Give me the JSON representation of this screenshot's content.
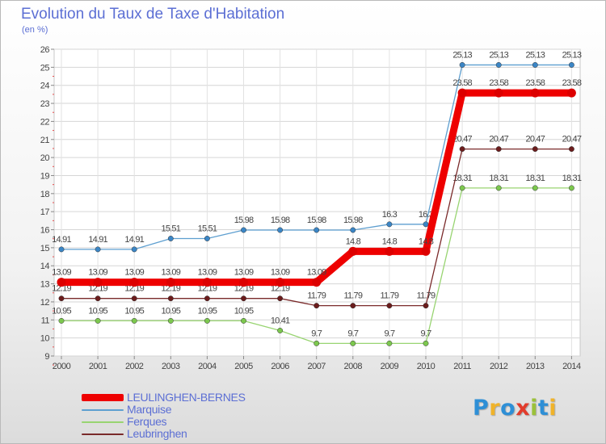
{
  "title": "Evolution du Taux de Taxe d'Habitation",
  "unit_label": "(en %)",
  "logo_text": "Proxiti",
  "logo_colors": [
    "#2e8fd6",
    "#f0b32a",
    "#2e8fd6",
    "#e23c2c",
    "#9bc13a",
    "#2e8fd6",
    "#f0b32a"
  ],
  "chart_data": {
    "type": "line",
    "title": "Evolution du Taux de Taxe d'Habitation",
    "ylabel": "(en %)",
    "x": [
      "2000",
      "2001",
      "2002",
      "2003",
      "2004",
      "2005",
      "2006",
      "2007",
      "2008",
      "2009",
      "2010",
      "2011",
      "2012",
      "2013",
      "2014"
    ],
    "ylim": [
      9,
      26
    ],
    "yticks": [
      9,
      10,
      11,
      12,
      13,
      14,
      15,
      16,
      17,
      18,
      19,
      20,
      21,
      22,
      23,
      24,
      25,
      26
    ],
    "grid": true,
    "legend_position": "bottom-left",
    "series": [
      {
        "name": "Marquise",
        "color": "#5e9fd0",
        "dot_color": "#3b86c6",
        "values": [
          14.91,
          14.91,
          14.91,
          15.51,
          15.51,
          15.98,
          15.98,
          15.98,
          15.98,
          16.3,
          16.3,
          25.13,
          25.13,
          25.13,
          25.13
        ]
      },
      {
        "name": "Ferques",
        "color": "#98d471",
        "dot_color": "#7cc84e",
        "values": [
          10.95,
          10.95,
          10.95,
          10.95,
          10.95,
          10.95,
          10.41,
          9.7,
          9.7,
          9.7,
          9.7,
          18.31,
          18.31,
          18.31,
          18.31
        ]
      },
      {
        "name": "Leubringhen",
        "color": "#7a2a2a",
        "dot_color": "#6b1c1c",
        "values": [
          12.19,
          12.19,
          12.19,
          12.19,
          12.19,
          12.19,
          12.19,
          11.79,
          11.79,
          11.79,
          11.79,
          20.47,
          20.47,
          20.47,
          20.47
        ]
      },
      {
        "name": "LEULINGHEN-BERNES",
        "color": "#ee0000",
        "dot_color": "#dd0000",
        "values": [
          13.09,
          13.09,
          13.09,
          13.09,
          13.09,
          13.09,
          13.09,
          13.09,
          14.8,
          14.8,
          14.8,
          23.58,
          23.58,
          23.58,
          23.58
        ]
      }
    ],
    "legend_order": [
      "LEULINGHEN-BERNES",
      "Marquise",
      "Ferques",
      "Leubringhen"
    ]
  }
}
